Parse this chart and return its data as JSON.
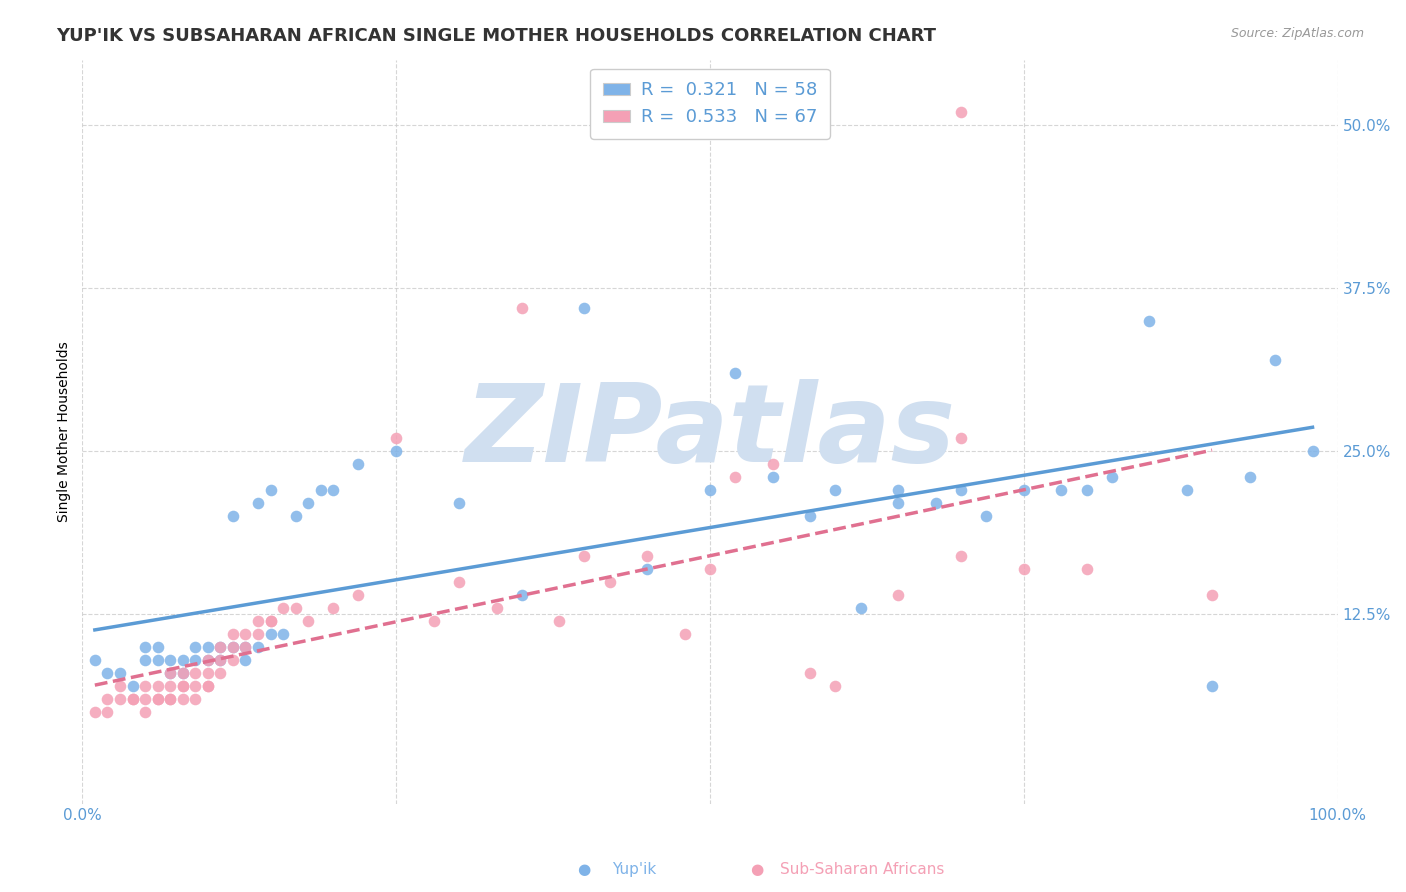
{
  "title": "YUP'IK VS SUBSAHARAN AFRICAN SINGLE MOTHER HOUSEHOLDS CORRELATION CHART",
  "source": "Source: ZipAtlas.com",
  "ylabel": "Single Mother Households",
  "background_color": "#ffffff",
  "watermark_text": "ZIPatlas",
  "watermark_color": "#d0dff0",
  "blue_color": "#7fb3e8",
  "pink_color": "#f4a0b5",
  "blue_line_color": "#5b9bd5",
  "pink_line_color": "#e07090",
  "title_fontsize": 13,
  "axis_label_fontsize": 10,
  "tick_fontsize": 11,
  "legend_fontsize": 13,
  "R_blue": "0.321",
  "N_blue": "58",
  "R_pink": "0.533",
  "N_pink": "67",
  "xlim": [
    0.0,
    1.0
  ],
  "ylim": [
    -0.02,
    0.55
  ],
  "yticks": [
    0.125,
    0.25,
    0.375,
    0.5
  ],
  "ytick_labels": [
    "12.5%",
    "25.0%",
    "37.5%",
    "50.0%"
  ],
  "xticks": [
    0.0,
    0.25,
    0.5,
    0.75,
    1.0
  ],
  "xtick_labels_show": [
    "0.0%",
    "",
    "",
    "",
    "100.0%"
  ],
  "yupik_x": [
    0.01,
    0.02,
    0.03,
    0.04,
    0.05,
    0.05,
    0.06,
    0.06,
    0.07,
    0.07,
    0.08,
    0.08,
    0.09,
    0.09,
    0.1,
    0.1,
    0.11,
    0.11,
    0.12,
    0.12,
    0.13,
    0.13,
    0.14,
    0.14,
    0.15,
    0.15,
    0.16,
    0.17,
    0.18,
    0.19,
    0.2,
    0.22,
    0.25,
    0.3,
    0.35,
    0.4,
    0.45,
    0.5,
    0.52,
    0.55,
    0.58,
    0.6,
    0.62,
    0.65,
    0.65,
    0.68,
    0.7,
    0.72,
    0.75,
    0.78,
    0.8,
    0.82,
    0.85,
    0.88,
    0.9,
    0.93,
    0.95,
    0.98
  ],
  "yupik_y": [
    0.09,
    0.08,
    0.08,
    0.07,
    0.09,
    0.1,
    0.09,
    0.1,
    0.08,
    0.09,
    0.09,
    0.08,
    0.09,
    0.1,
    0.1,
    0.09,
    0.09,
    0.1,
    0.1,
    0.2,
    0.09,
    0.1,
    0.1,
    0.21,
    0.11,
    0.22,
    0.11,
    0.2,
    0.21,
    0.22,
    0.22,
    0.24,
    0.25,
    0.21,
    0.14,
    0.36,
    0.16,
    0.22,
    0.31,
    0.23,
    0.2,
    0.22,
    0.13,
    0.21,
    0.22,
    0.21,
    0.22,
    0.2,
    0.22,
    0.22,
    0.22,
    0.23,
    0.35,
    0.22,
    0.07,
    0.23,
    0.32,
    0.25
  ],
  "subsaharan_x": [
    0.01,
    0.02,
    0.02,
    0.03,
    0.03,
    0.04,
    0.04,
    0.05,
    0.05,
    0.05,
    0.06,
    0.06,
    0.06,
    0.07,
    0.07,
    0.07,
    0.07,
    0.08,
    0.08,
    0.08,
    0.08,
    0.09,
    0.09,
    0.09,
    0.1,
    0.1,
    0.1,
    0.1,
    0.11,
    0.11,
    0.11,
    0.12,
    0.12,
    0.12,
    0.13,
    0.13,
    0.14,
    0.14,
    0.15,
    0.15,
    0.16,
    0.17,
    0.18,
    0.2,
    0.22,
    0.25,
    0.28,
    0.3,
    0.33,
    0.35,
    0.38,
    0.4,
    0.42,
    0.45,
    0.48,
    0.5,
    0.52,
    0.55,
    0.58,
    0.6,
    0.65,
    0.7,
    0.7,
    0.75,
    0.8,
    0.9,
    0.7
  ],
  "subsaharan_y": [
    0.05,
    0.05,
    0.06,
    0.06,
    0.07,
    0.06,
    0.06,
    0.05,
    0.06,
    0.07,
    0.06,
    0.06,
    0.07,
    0.06,
    0.06,
    0.07,
    0.08,
    0.06,
    0.07,
    0.07,
    0.08,
    0.06,
    0.07,
    0.08,
    0.07,
    0.07,
    0.08,
    0.09,
    0.08,
    0.09,
    0.1,
    0.09,
    0.1,
    0.11,
    0.1,
    0.11,
    0.11,
    0.12,
    0.12,
    0.12,
    0.13,
    0.13,
    0.12,
    0.13,
    0.14,
    0.26,
    0.12,
    0.15,
    0.13,
    0.36,
    0.12,
    0.17,
    0.15,
    0.17,
    0.11,
    0.16,
    0.23,
    0.24,
    0.08,
    0.07,
    0.14,
    0.17,
    0.26,
    0.16,
    0.16,
    0.14,
    0.51
  ]
}
